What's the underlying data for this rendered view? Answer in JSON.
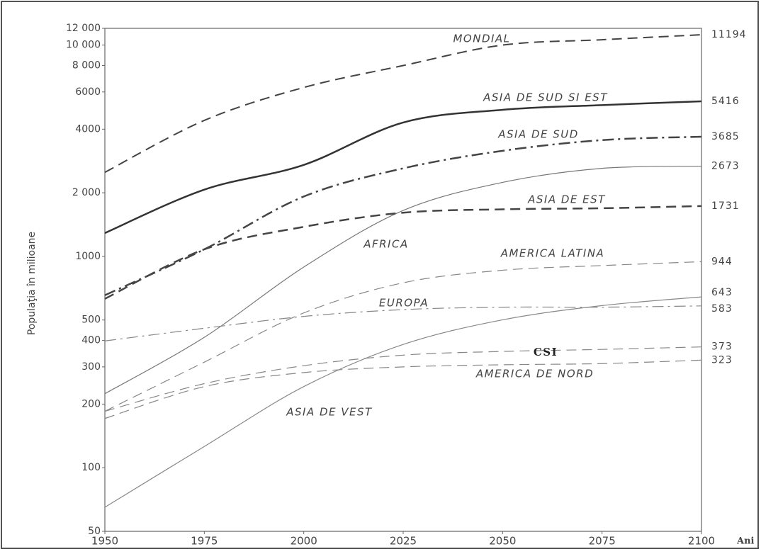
{
  "chart_data": {
    "type": "line",
    "y_label": "Populaţia în milioane",
    "x_label": "Ani",
    "log_y": true,
    "x": [
      1950,
      1975,
      2000,
      2025,
      2050,
      2075,
      2100
    ],
    "xlim": [
      1950,
      2100
    ],
    "xticks": [
      1950,
      1975,
      2000,
      2025,
      2050,
      2075,
      2100
    ],
    "ylim": [
      50,
      12000
    ],
    "yticks": [
      50,
      100,
      200,
      300,
      400,
      500,
      1000,
      {
        "value": 2000,
        "label": "2 000"
      },
      4000,
      6000,
      {
        "value": 8000,
        "label": "8 000"
      },
      {
        "value": 10000,
        "label": "10 000"
      },
      {
        "value": 12000,
        "label": "12 000"
      }
    ],
    "series": [
      {
        "name": "MONDIAL",
        "color": "#444",
        "dash": "dashed",
        "width": 2,
        "values": [
          2500,
          4400,
          6300,
          8000,
          10000,
          10600,
          11194
        ]
      },
      {
        "name": "ASIA DE SUD SI EST",
        "color": "#333",
        "dash": "solid",
        "width": 2.5,
        "values": [
          1290,
          2070,
          2710,
          4300,
          4940,
          5200,
          5416
        ]
      },
      {
        "name": "ASIA DE SUD",
        "color": "#444",
        "dash": "dashdot",
        "width": 2.5,
        "values": [
          655,
          1080,
          1920,
          2610,
          3160,
          3550,
          3685
        ]
      },
      {
        "name": "AFRICA",
        "color": "#777",
        "dash": "solid",
        "width": 1.2,
        "values": [
          224,
          414,
          890,
          1650,
          2240,
          2610,
          2673
        ]
      },
      {
        "name": "ASIA DE EST",
        "color": "#444",
        "dash": "dashed",
        "width": 2.5,
        "values": [
          630,
          1080,
          1380,
          1610,
          1670,
          1690,
          1731
        ]
      },
      {
        "name": "AMERICA LATINA",
        "color": "#888",
        "dash": "dashed",
        "width": 1.2,
        "values": [
          185,
          316,
          540,
          750,
          860,
          905,
          944
        ]
      },
      {
        "name": "EUROPA",
        "color": "#888",
        "dash": "dashdot",
        "width": 1.2,
        "values": [
          398,
          457,
          520,
          560,
          575,
          575,
          583
        ]
      },
      {
        "name": "CSI",
        "color": "#888",
        "dash": "dashed",
        "width": 1.2,
        "values": [
          185,
          250,
          304,
          341,
          355,
          363,
          373
        ]
      },
      {
        "name": "AMERICA DE NORD",
        "color": "#888",
        "dash": "dashed",
        "width": 1.2,
        "values": [
          171,
          242,
          282,
          300,
          307,
          311,
          323
        ]
      },
      {
        "name": "ASIA DE VEST",
        "color": "#888",
        "dash": "solid",
        "width": 1.2,
        "values": [
          65,
          126,
          242,
          383,
          501,
          585,
          643
        ]
      }
    ]
  }
}
